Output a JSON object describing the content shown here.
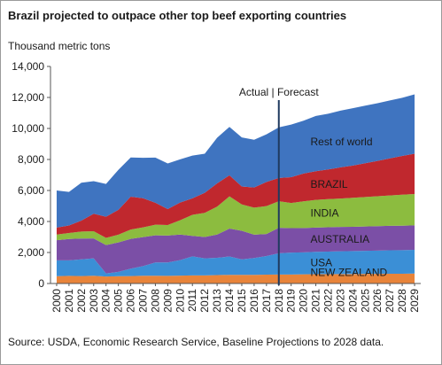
{
  "chart_data": {
    "type": "area",
    "stacked": true,
    "title": "Brazil projected to outpace other top beef exporting countries",
    "ylabel": "Thousand metric tons",
    "ylim": [
      0,
      14000
    ],
    "yticks": [
      0,
      2000,
      4000,
      6000,
      8000,
      10000,
      12000,
      14000
    ],
    "ytick_labels": [
      "0",
      "2,000",
      "4,000",
      "6,000",
      "8,000",
      "10,000",
      "12,000",
      "14,000"
    ],
    "grid": false,
    "x": [
      "2000",
      "2001",
      "2002",
      "2003",
      "2004",
      "2005",
      "2006",
      "2007",
      "2008",
      "2009",
      "2010",
      "2011",
      "2012",
      "2013",
      "2014",
      "2015",
      "2016",
      "2017",
      "2018",
      "2019",
      "2020",
      "2021",
      "2022",
      "2023",
      "2024",
      "2025",
      "2026",
      "2027",
      "2028",
      "2029"
    ],
    "divider": {
      "x": "2018",
      "label": "Actual | Forecast"
    },
    "series": [
      {
        "name": "NEW ZEALAND",
        "color": "#e8843a",
        "values": [
          470,
          490,
          480,
          500,
          450,
          470,
          480,
          500,
          500,
          490,
          510,
          520,
          520,
          540,
          560,
          560,
          560,
          570,
          580,
          580,
          590,
          600,
          600,
          610,
          610,
          620,
          620,
          630,
          630,
          640
        ]
      },
      {
        "name": "USA",
        "color": "#3b8fd6",
        "values": [
          1020,
          1000,
          1080,
          1120,
          200,
          280,
          480,
          620,
          860,
          870,
          1000,
          1230,
          1100,
          1120,
          1180,
          1000,
          1080,
          1200,
          1370,
          1410,
          1420,
          1440,
          1460,
          1470,
          1480,
          1490,
          1500,
          1510,
          1520,
          1530
        ]
      },
      {
        "name": "AUSTRALIA",
        "color": "#7b4fa6",
        "values": [
          1300,
          1380,
          1340,
          1290,
          1830,
          1900,
          1920,
          1870,
          1750,
          1730,
          1650,
          1320,
          1380,
          1500,
          1800,
          1840,
          1510,
          1420,
          1640,
          1580,
          1570,
          1570,
          1570,
          1570,
          1570,
          1570,
          1580,
          1580,
          1580,
          1580
        ]
      },
      {
        "name": "INDIA",
        "color": "#8cbc3f",
        "values": [
          370,
          390,
          450,
          460,
          460,
          500,
          600,
          630,
          680,
          680,
          920,
          1360,
          1560,
          1800,
          2080,
          1700,
          1740,
          1800,
          1720,
          1620,
          1720,
          1780,
          1810,
          1830,
          1870,
          1900,
          1930,
          1960,
          2000,
          2020
        ]
      },
      {
        "name": "BRAZIL",
        "color": "#c0282e",
        "values": [
          450,
          480,
          710,
          1130,
          1370,
          1600,
          2120,
          1880,
          1420,
          1030,
          1140,
          1060,
          1290,
          1500,
          1360,
          1160,
          1300,
          1560,
          1500,
          1670,
          1790,
          1850,
          1920,
          2010,
          2080,
          2180,
          2280,
          2390,
          2500,
          2600
        ]
      },
      {
        "name": "Rest of world",
        "color": "#3f74c0",
        "values": [
          2390,
          2170,
          2440,
          2100,
          2110,
          2580,
          2530,
          2610,
          2910,
          2940,
          2790,
          2760,
          2520,
          2940,
          3120,
          3160,
          3080,
          3070,
          3260,
          3390,
          3410,
          3570,
          3590,
          3660,
          3700,
          3710,
          3720,
          3740,
          3750,
          3830
        ]
      }
    ]
  },
  "source": "Source: USDA, Economic Research Service, Baseline Projections to 2028 data."
}
